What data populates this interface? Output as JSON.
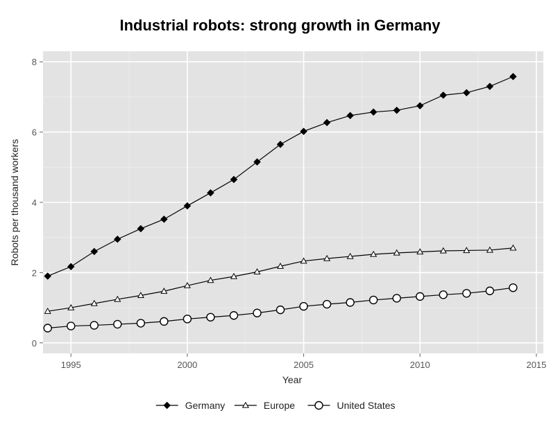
{
  "chart_data": {
    "type": "line",
    "title": "Industrial robots: strong growth in Germany",
    "xlabel": "Year",
    "ylabel": "Robots per thousand workers",
    "xlim": [
      1993.8,
      2015.3
    ],
    "ylim": [
      -0.3,
      8.3
    ],
    "xticks": [
      1995,
      2000,
      2005,
      2010,
      2015
    ],
    "yticks": [
      0,
      2,
      4,
      6,
      8
    ],
    "grid": true,
    "legend_position": "bottom",
    "x": [
      1994,
      1995,
      1996,
      1997,
      1998,
      1999,
      2000,
      2001,
      2002,
      2003,
      2004,
      2005,
      2006,
      2007,
      2008,
      2009,
      2010,
      2011,
      2012,
      2013,
      2014
    ],
    "series": [
      {
        "name": "Germany",
        "marker": "diamond",
        "values": [
          1.9,
          2.17,
          2.6,
          2.95,
          3.25,
          3.52,
          3.9,
          4.27,
          4.65,
          5.15,
          5.65,
          6.02,
          6.27,
          6.47,
          6.57,
          6.62,
          6.75,
          7.05,
          7.12,
          7.3,
          7.58
        ]
      },
      {
        "name": "Europe",
        "marker": "triangle",
        "values": [
          0.9,
          1.0,
          1.12,
          1.24,
          1.35,
          1.47,
          1.63,
          1.78,
          1.89,
          2.02,
          2.18,
          2.33,
          2.4,
          2.46,
          2.52,
          2.56,
          2.59,
          2.62,
          2.63,
          2.64,
          2.7
        ]
      },
      {
        "name": "United States",
        "marker": "circle",
        "values": [
          0.42,
          0.48,
          0.5,
          0.53,
          0.56,
          0.61,
          0.68,
          0.73,
          0.78,
          0.85,
          0.94,
          1.04,
          1.1,
          1.15,
          1.22,
          1.27,
          1.32,
          1.37,
          1.41,
          1.48,
          1.57
        ]
      }
    ]
  }
}
